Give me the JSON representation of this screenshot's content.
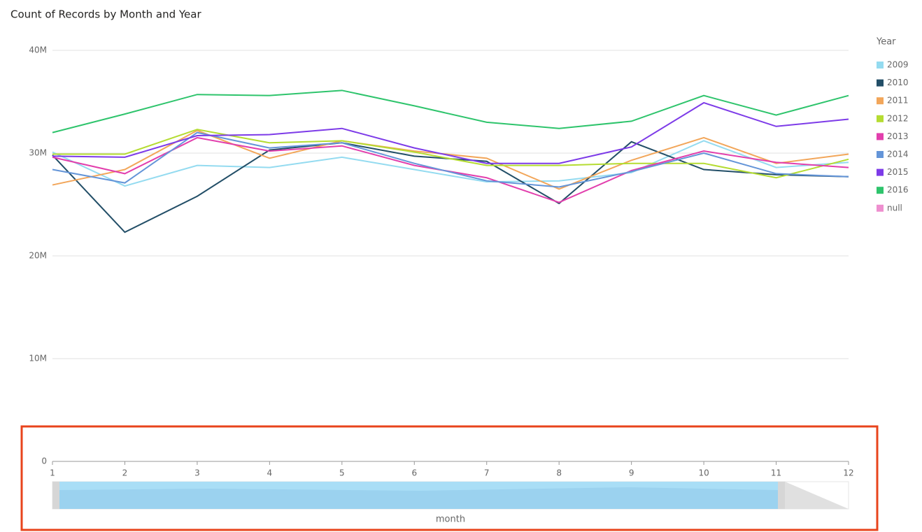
{
  "chart_data": {
    "type": "line",
    "title": "Count of Records by Month and Year",
    "x_label": "month",
    "legend_title": "Year",
    "legend": "right",
    "grid": true,
    "x": [
      1,
      2,
      3,
      4,
      5,
      6,
      7,
      8,
      9,
      10,
      11,
      12
    ],
    "xlim": [
      1,
      12
    ],
    "xticks": [
      1,
      2,
      3,
      4,
      5,
      6,
      7,
      8,
      9,
      10,
      11,
      12
    ],
    "ylim": [
      0,
      40000000
    ],
    "yticks": [
      {
        "value": 0,
        "label": "0"
      },
      {
        "value": 10000000,
        "label": "10M"
      },
      {
        "value": 20000000,
        "label": "20M"
      },
      {
        "value": 30000000,
        "label": "30M"
      },
      {
        "value": 40000000,
        "label": "40M"
      }
    ],
    "series": [
      {
        "name": "2009",
        "color": "#94dbf0",
        "values": [
          30100000,
          26800000,
          28800000,
          28600000,
          29600000,
          28400000,
          27200000,
          27300000,
          28100000,
          31200000,
          28600000,
          29100000
        ]
      },
      {
        "name": "2010",
        "color": "#224e67",
        "values": [
          29800000,
          22300000,
          25800000,
          30300000,
          31000000,
          29700000,
          29200000,
          25100000,
          31100000,
          28400000,
          27900000,
          27700000
        ]
      },
      {
        "name": "2011",
        "color": "#f2a65a",
        "values": [
          26900000,
          28400000,
          32200000,
          29500000,
          31200000,
          30200000,
          29500000,
          26500000,
          29300000,
          31500000,
          29000000,
          29900000
        ]
      },
      {
        "name": "2012",
        "color": "#b5dc32",
        "values": [
          29900000,
          29900000,
          32300000,
          31000000,
          31200000,
          30100000,
          28800000,
          28800000,
          29000000,
          29000000,
          27600000,
          29400000
        ]
      },
      {
        "name": "2013",
        "color": "#e23fad",
        "values": [
          29600000,
          28000000,
          31500000,
          30200000,
          30700000,
          28800000,
          27600000,
          25200000,
          28300000,
          30200000,
          29100000,
          28600000
        ]
      },
      {
        "name": "2014",
        "color": "#6495d8",
        "values": [
          28400000,
          27100000,
          32000000,
          30500000,
          31000000,
          29000000,
          27300000,
          26700000,
          28200000,
          30000000,
          28000000,
          27700000
        ]
      },
      {
        "name": "2015",
        "color": "#7d3be8",
        "values": [
          29700000,
          29600000,
          31700000,
          31800000,
          32400000,
          30500000,
          29000000,
          29000000,
          30600000,
          34900000,
          32600000,
          33300000
        ]
      },
      {
        "name": "2016",
        "color": "#2ec46c",
        "values": [
          32000000,
          33800000,
          35700000,
          35600000,
          36100000,
          34600000,
          33000000,
          32400000,
          33100000,
          35600000,
          33700000,
          35600000
        ]
      },
      {
        "name": "null",
        "color": "#ee8fcf",
        "values": [
          null,
          null,
          null,
          null,
          null,
          null,
          null,
          null,
          null,
          null,
          null,
          null
        ]
      }
    ]
  }
}
